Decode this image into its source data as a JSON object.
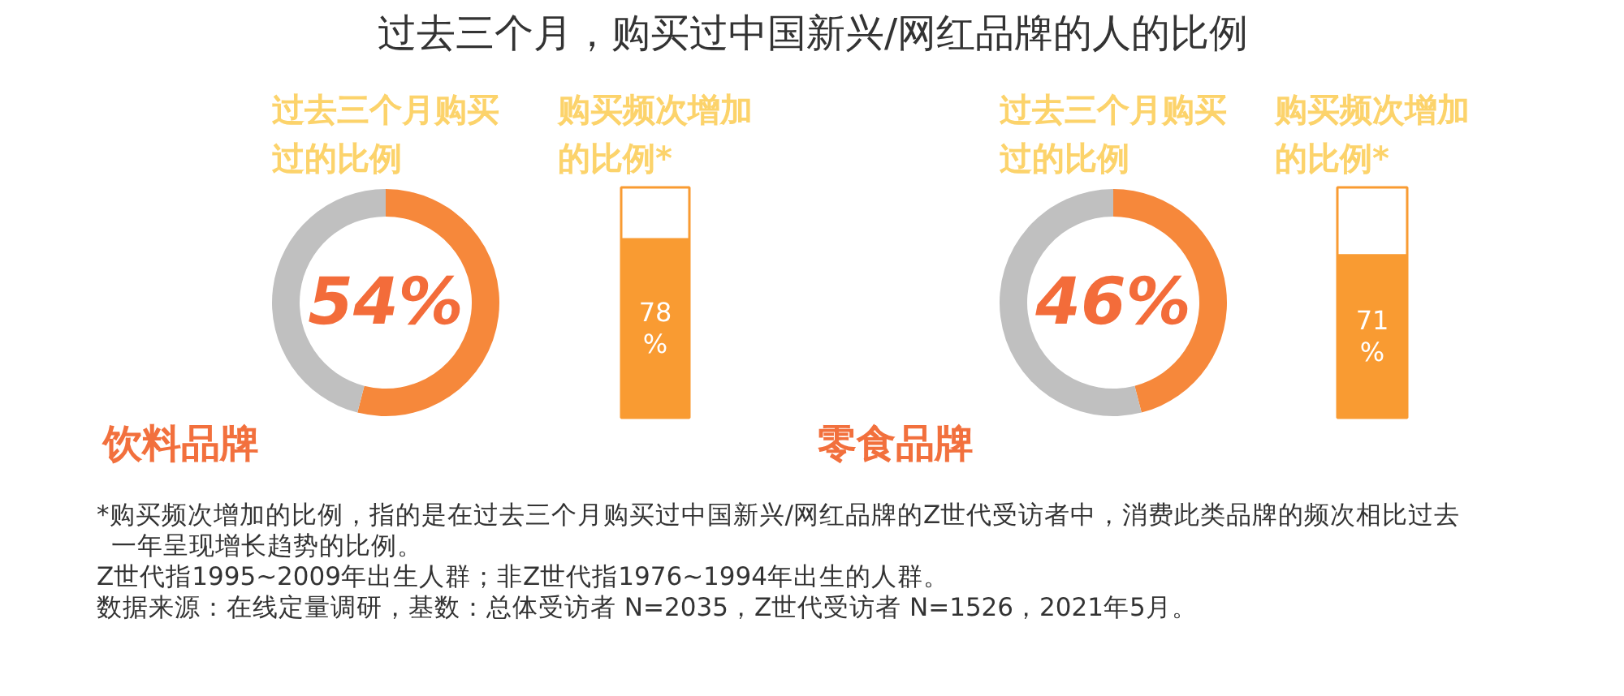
{
  "chart_data": [
    {
      "type": "other",
      "title": "过去三个月，购买过中国新兴/网红品牌的人的比例",
      "annotations": [
        "*购买频次增加的比例，指的是在过去三个月购买过中国新兴/网红品牌的Z世代受访者中，消费此类品牌的频次相比过去一年呈现增长趋势的比例。",
        "Z世代指1995~2009年出生人群；非Z世代指1976~1994年出生的人群。",
        "数据来源：在线定量调研，基数：总体受访者 N=2035，Z世代受访者 N=1526，2021年5月。"
      ]
    },
    {
      "type": "donut",
      "title": "过去三个月购买过的比例",
      "categories": [
        null,
        null
      ],
      "values": [
        54,
        46
      ],
      "colors": [
        "#f6883b",
        "#c0c0c0"
      ],
      "value_labels": [
        "54%",
        null
      ],
      "annotations": [
        "饮料品牌"
      ]
    },
    {
      "type": "bar",
      "title": "购买频次增加的比例*",
      "categories": [
        null
      ],
      "values": [
        78
      ],
      "color": "#f99b32",
      "ylim": [
        0,
        100
      ],
      "tick_labels": false,
      "value_labels": [
        "78%"
      ]
    },
    {
      "type": "donut",
      "title": "过去三个月购买过的比例",
      "categories": [
        null,
        null
      ],
      "values": [
        46,
        54
      ],
      "colors": [
        "#f6883b",
        "#c0c0c0"
      ],
      "value_labels": [
        "46%",
        null
      ],
      "annotations": [
        "零食品牌"
      ]
    },
    {
      "type": "bar",
      "title": "购买频次增加的比例*",
      "categories": [
        null
      ],
      "values": [
        71
      ],
      "color": "#f99b32",
      "ylim": [
        0,
        100
      ],
      "tick_labels": false,
      "value_labels": [
        "71%"
      ]
    }
  ]
}
